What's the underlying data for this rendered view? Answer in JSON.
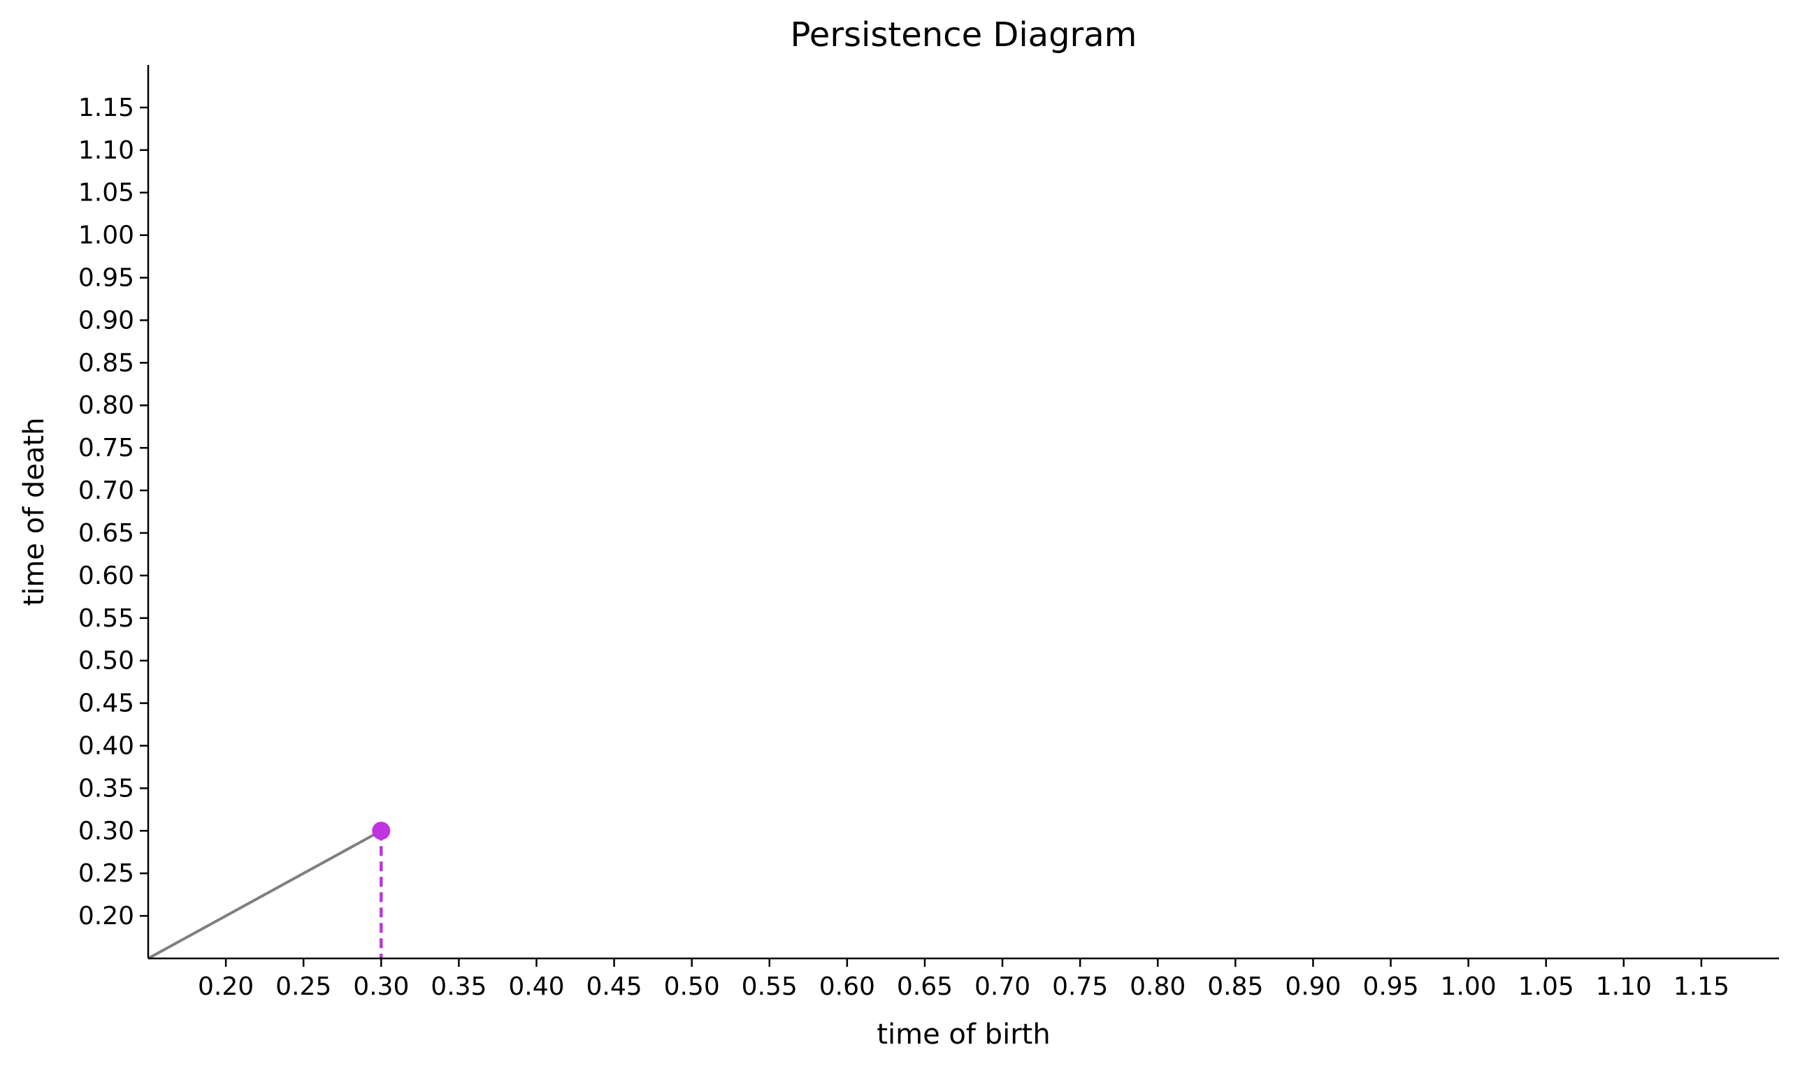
{
  "chart_data": {
    "type": "scatter",
    "title": "Persistence Diagram",
    "xlabel": "time of birth",
    "ylabel": "time of death",
    "xlim": [
      0.15,
      1.2
    ],
    "ylim": [
      0.15,
      1.2
    ],
    "x_ticks": [
      "0.20",
      "0.25",
      "0.30",
      "0.35",
      "0.40",
      "0.45",
      "0.50",
      "0.55",
      "0.60",
      "0.65",
      "0.70",
      "0.75",
      "0.80",
      "0.85",
      "0.90",
      "0.95",
      "1.00",
      "1.05",
      "1.10",
      "1.15"
    ],
    "y_ticks": [
      "0.20",
      "0.25",
      "0.30",
      "0.35",
      "0.40",
      "0.45",
      "0.50",
      "0.55",
      "0.60",
      "0.65",
      "0.70",
      "0.75",
      "0.80",
      "0.85",
      "0.90",
      "0.95",
      "1.00",
      "1.05",
      "1.10",
      "1.15"
    ],
    "points": [
      {
        "x": 0.3,
        "y": 0.3
      }
    ],
    "diagonal": {
      "from": [
        0.15,
        0.15
      ],
      "to": [
        0.3,
        0.3
      ]
    },
    "grid": false,
    "colors": {
      "point": "#c035e0",
      "diagonal": "#808080"
    }
  }
}
